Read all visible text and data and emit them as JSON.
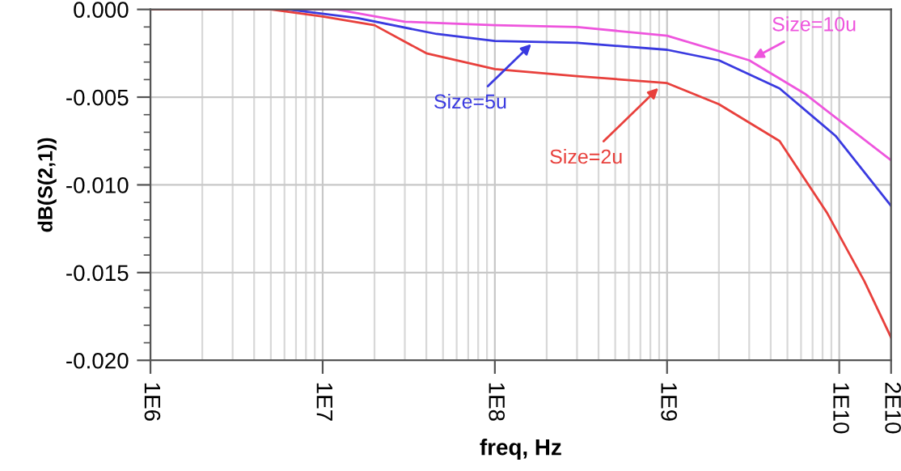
{
  "chart_data": {
    "type": "line",
    "xlabel": "freq, Hz",
    "ylabel": "dB(S(2,1))",
    "log": "x",
    "grid": true,
    "legend": false,
    "marker": "none",
    "line_style": "solid",
    "xlim": [
      1000000,
      20000000000
    ],
    "xticks": [
      {
        "value": 1000000,
        "label": "1E6"
      },
      {
        "value": 10000000,
        "label": "1E7"
      },
      {
        "value": 100000000,
        "label": "1E8"
      },
      {
        "value": 1000000000,
        "label": "1E9"
      },
      {
        "value": 10000000000,
        "label": "1E10"
      },
      {
        "value": 20000000000,
        "label": "2E10"
      }
    ],
    "ylim": [
      -0.02,
      0
    ],
    "yticks": [
      {
        "value": -0.02,
        "label": "-0.020"
      },
      {
        "value": -0.015,
        "label": "-0.015"
      },
      {
        "value": -0.01,
        "label": "-0.010"
      },
      {
        "value": -0.005,
        "label": "-0.005"
      },
      {
        "value": 0,
        "label": "0.000"
      }
    ],
    "series": [
      {
        "color": "#ee55dd",
        "x": [
          1000000,
          12000000,
          30000000,
          100000000,
          300000000,
          1000000000,
          3000000000,
          6300000000,
          20000000000
        ],
        "values": [
          0,
          0,
          -0.0007,
          -0.0009,
          -0.001,
          -0.0015,
          -0.0029,
          -0.0048,
          -0.0086
        ]
      },
      {
        "color": "#3a3ae0",
        "x": [
          1000000,
          6300000,
          16000000,
          46000000,
          100000000,
          300000000,
          1000000000,
          2000000000,
          4500000000,
          9500000000,
          20000000000
        ],
        "values": [
          0,
          0,
          -0.0005,
          -0.0014,
          -0.0018,
          -0.0019,
          -0.0023,
          -0.0029,
          -0.0045,
          -0.0072,
          -0.0112
        ]
      },
      {
        "color": "#e8403c",
        "x": [
          1000000,
          5000000,
          10000000,
          20000000,
          40000000,
          100000000,
          300000000,
          1000000000,
          2000000000,
          4500000000,
          8500000000,
          14000000000,
          20000000000
        ],
        "values": [
          0,
          0,
          -0.0004,
          -0.0009,
          -0.0025,
          -0.0034,
          -0.0038,
          -0.0042,
          -0.0054,
          -0.0075,
          -0.0116,
          -0.0155,
          -0.0187
        ]
      }
    ],
    "annotations": [
      {
        "text": "Size=10u",
        "x": 3000000000,
        "y": -0.0029
      },
      {
        "text": "Size=5u",
        "x": 170000000,
        "y": -0.0018
      },
      {
        "text": "Size=2u",
        "x": 930000000,
        "y": -0.0043
      }
    ]
  }
}
